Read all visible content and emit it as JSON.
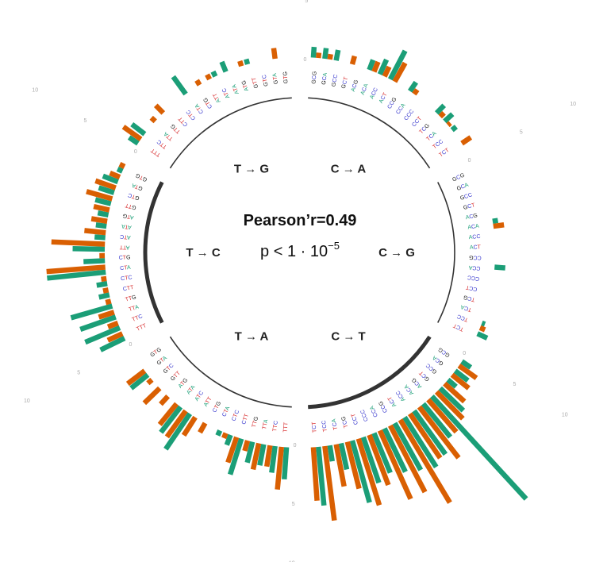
{
  "chart_data": {
    "type": "circular-bar",
    "correlation_label": "Pearson’r=0.49",
    "p_value": {
      "prefix": "p < 1 · 10",
      "exponent": "−5"
    },
    "scale_ticks": [
      "0",
      "5",
      "10"
    ],
    "colors": {
      "series_a": "#1b9e77",
      "series_b": "#d95f02",
      "ring": "#333333"
    },
    "nucleotide_colors": {
      "A": "#1b9e77",
      "C": "#3333cc",
      "G": "#111111",
      "T": "#d62728"
    },
    "series": [
      {
        "color": "#1b9e77"
      },
      {
        "color": "#d95f02"
      }
    ],
    "groups": [
      {
        "label": "C → A",
        "contexts": [
          "GCG",
          "GCA",
          "GCC",
          "GCT",
          "ACG",
          "ACA",
          "ACC",
          "ACT",
          "CCG",
          "CCA",
          "CCC",
          "CCT",
          "TCG",
          "TCA",
          "TCC",
          "TCT"
        ],
        "values_a": [
          1.0,
          1.0,
          1.0,
          0,
          0,
          1.0,
          1.5,
          3.0,
          0,
          1.0,
          0,
          0,
          1.0,
          1.0,
          0.5,
          0
        ],
        "values_b": [
          0.5,
          0.5,
          0,
          0.8,
          0,
          1.0,
          1.0,
          2.0,
          0,
          0.5,
          0,
          0,
          0.5,
          0.3,
          0,
          1.0
        ]
      },
      {
        "label": "C → G",
        "contexts": [
          "GCG",
          "GCA",
          "GCC",
          "GCT",
          "ACG",
          "ACA",
          "ACC",
          "ACT",
          "CCG",
          "CCA",
          "CCC",
          "CCT",
          "TCG",
          "TCA",
          "TCC",
          "TCT"
        ],
        "values_a": [
          0,
          0,
          0,
          0,
          0,
          0.5,
          0,
          0,
          0,
          1.0,
          0,
          0,
          0,
          0,
          0.3,
          1.0
        ],
        "values_b": [
          0,
          0,
          0,
          0,
          0,
          1.0,
          0,
          0,
          0,
          0,
          0,
          0,
          0,
          0,
          0.5,
          0
        ]
      },
      {
        "label": "C → T",
        "contexts": [
          "GCG",
          "GCA",
          "GCC",
          "GCT",
          "ACG",
          "ACA",
          "ACC",
          "ACT",
          "CCG",
          "CCA",
          "CCC",
          "CCT",
          "TCG",
          "TCA",
          "TCC",
          "TCT"
        ],
        "values_a": [
          1.0,
          1.5,
          1.0,
          3.0,
          13.0,
          4.0,
          5.0,
          5.5,
          5.0,
          4.5,
          4.0,
          4.5,
          6.0,
          2.5,
          1.5,
          5.5
        ],
        "values_b": [
          2.0,
          2.0,
          2.5,
          3.5,
          4.0,
          6.0,
          5.0,
          9.0,
          7.0,
          7.0,
          5.0,
          6.5,
          4.5,
          4.0,
          7.0,
          5.0
        ]
      },
      {
        "label": "T → A",
        "contexts": [
          "TTT",
          "TTC",
          "TTA",
          "TTG",
          "CTT",
          "CTC",
          "CTA",
          "CTG",
          "ATT",
          "ATC",
          "ATA",
          "ATG",
          "GTT",
          "GTC",
          "GTA",
          "GTG"
        ],
        "values_a": [
          3.0,
          2.5,
          2.0,
          2.0,
          3.5,
          1.0,
          0.5,
          0,
          0,
          4.0,
          3.0,
          0,
          0,
          0,
          2.0,
          0
        ],
        "values_b": [
          4.0,
          2.0,
          2.5,
          1.0,
          2.5,
          0.5,
          0,
          1.0,
          2.0,
          3.0,
          2.5,
          1.0,
          2.0,
          0.5,
          2.0,
          0
        ]
      },
      {
        "label": "T → C",
        "contexts": [
          "TTT",
          "TTC",
          "TTA",
          "TTG",
          "CTT",
          "CTC",
          "CTA",
          "CTG",
          "ATT",
          "ATC",
          "ATA",
          "ATG",
          "GTT",
          "GTC",
          "GTA",
          "GTG"
        ],
        "values_a": [
          2.5,
          3.5,
          3.5,
          4.0,
          1.0,
          1.0,
          5.5,
          2.0,
          3.0,
          1.0,
          1.0,
          1.0,
          1.5,
          1.5,
          1.5,
          0.5
        ],
        "values_b": [
          1.5,
          1.0,
          1.5,
          0.5,
          0.5,
          0.5,
          5.5,
          0.5,
          5.0,
          2.0,
          1.5,
          1.5,
          2.5,
          2.0,
          1.0,
          0.5
        ]
      },
      {
        "label": "T → G",
        "contexts": [
          "TTT",
          "TTC",
          "TTA",
          "TTG",
          "CTT",
          "CTC",
          "CTA",
          "CTG",
          "ATT",
          "ATC",
          "ATA",
          "ATG",
          "GTT",
          "GTC",
          "GTA",
          "GTG"
        ],
        "values_a": [
          1.0,
          1.5,
          0,
          0,
          0,
          0,
          2.0,
          0,
          0,
          0.5,
          1.0,
          0,
          0.5,
          0,
          0,
          0
        ],
        "values_b": [
          2.0,
          0,
          0.5,
          1.0,
          0,
          0,
          0,
          0.5,
          0.5,
          0,
          0,
          0.5,
          0,
          0,
          1.0,
          0
        ]
      }
    ]
  }
}
